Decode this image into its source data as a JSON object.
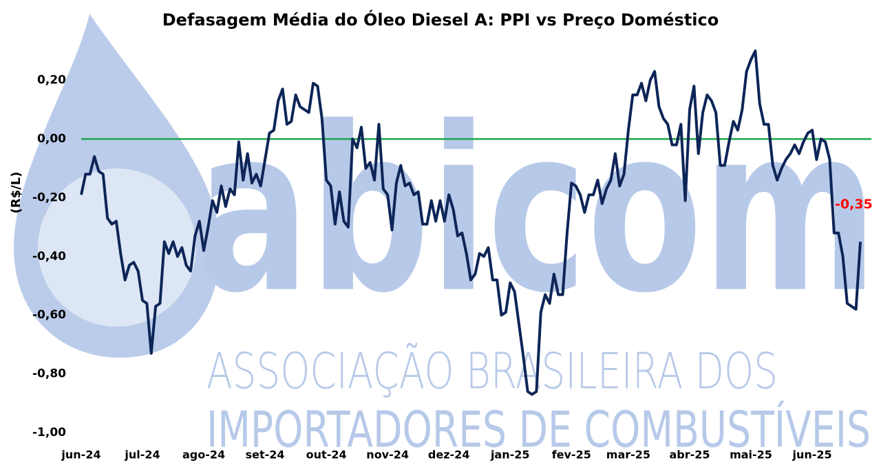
{
  "chart_data": {
    "type": "line",
    "title": "Defasagem Média do Óleo Diesel A: PPI vs Preço Doméstico",
    "y_label": "(R$/L)",
    "color": "#0d2557",
    "ylim": [
      -1.0,
      0.3
    ],
    "yticks": [
      {
        "value": -1.0,
        "label": "-1,00"
      },
      {
        "value": -0.8,
        "label": "-0,80"
      },
      {
        "value": -0.6,
        "label": "-0,60"
      },
      {
        "value": -0.4,
        "label": "-0,40"
      },
      {
        "value": -0.2,
        "label": "-0,20"
      },
      {
        "value": 0,
        "label": "0,00"
      },
      {
        "value": 0.2,
        "label": "0,20"
      }
    ],
    "reference_line": {
      "value": 0,
      "color": "#1aa64a"
    },
    "annotation": {
      "text": "-0,35",
      "value": -0.35,
      "color": "#ff0000"
    },
    "watermark": {
      "logo": "abicom",
      "lines": [
        "ASSOCIAÇÃO BRASILEIRA DOS",
        "IMPORTADORES DE COMBUSTÍVEIS"
      ],
      "color": "#b7c9e9"
    },
    "categories": [
      "jun-24",
      null,
      null,
      null,
      null,
      null,
      null,
      null,
      null,
      null,
      null,
      null,
      null,
      null,
      "jul-24",
      null,
      null,
      null,
      null,
      null,
      null,
      null,
      null,
      null,
      null,
      null,
      null,
      null,
      "ago-24",
      null,
      null,
      null,
      null,
      null,
      null,
      null,
      null,
      null,
      null,
      null,
      null,
      null,
      "set-24",
      null,
      null,
      null,
      null,
      null,
      null,
      null,
      null,
      null,
      null,
      null,
      null,
      null,
      "out-24",
      null,
      null,
      null,
      null,
      null,
      null,
      null,
      null,
      null,
      null,
      null,
      null,
      null,
      "nov-24",
      null,
      null,
      null,
      null,
      null,
      null,
      null,
      null,
      null,
      null,
      null,
      null,
      null,
      "dez-24",
      null,
      null,
      null,
      null,
      null,
      null,
      null,
      null,
      null,
      null,
      null,
      null,
      null,
      "jan-25",
      null,
      null,
      null,
      null,
      null,
      null,
      null,
      null,
      null,
      null,
      null,
      null,
      null,
      "fev-25",
      null,
      null,
      null,
      null,
      null,
      null,
      null,
      null,
      null,
      null,
      null,
      null,
      "mar-25",
      null,
      null,
      null,
      null,
      null,
      null,
      null,
      null,
      null,
      null,
      null,
      null,
      null,
      "abr-25",
      null,
      null,
      null,
      null,
      null,
      null,
      null,
      null,
      null,
      null,
      null,
      null,
      null,
      "mai-25",
      null,
      null,
      null,
      null,
      null,
      null,
      null,
      null,
      null,
      null,
      null,
      null,
      null,
      "jun-25",
      null,
      null,
      null,
      null,
      null,
      null,
      null,
      null,
      null,
      null,
      null
    ],
    "values": [
      -0.19,
      -0.12,
      -0.12,
      -0.06,
      -0.11,
      -0.12,
      -0.27,
      -0.29,
      -0.28,
      -0.39,
      -0.48,
      -0.43,
      -0.42,
      -0.45,
      -0.55,
      -0.56,
      -0.73,
      -0.57,
      -0.56,
      -0.35,
      -0.39,
      -0.35,
      -0.4,
      -0.37,
      -0.43,
      -0.45,
      -0.33,
      -0.28,
      -0.38,
      -0.3,
      -0.21,
      -0.25,
      -0.16,
      -0.23,
      -0.17,
      -0.19,
      -0.01,
      -0.14,
      -0.05,
      -0.15,
      -0.12,
      -0.16,
      -0.07,
      0.02,
      0.03,
      0.13,
      0.17,
      0.05,
      0.06,
      0.15,
      0.11,
      0.1,
      0.09,
      0.19,
      0.18,
      0.07,
      -0.14,
      -0.16,
      -0.29,
      -0.18,
      -0.28,
      -0.3,
      0.0,
      -0.03,
      0.04,
      -0.1,
      -0.08,
      -0.14,
      0.05,
      -0.17,
      -0.19,
      -0.31,
      -0.15,
      -0.09,
      -0.16,
      -0.15,
      -0.19,
      -0.18,
      -0.29,
      -0.29,
      -0.21,
      -0.28,
      -0.21,
      -0.28,
      -0.19,
      -0.24,
      -0.33,
      -0.32,
      -0.39,
      -0.48,
      -0.46,
      -0.39,
      -0.4,
      -0.37,
      -0.48,
      -0.48,
      -0.6,
      -0.59,
      -0.49,
      -0.52,
      -0.63,
      -0.74,
      -0.86,
      -0.87,
      -0.86,
      -0.59,
      -0.53,
      -0.56,
      -0.46,
      -0.53,
      -0.53,
      -0.32,
      -0.15,
      -0.16,
      -0.19,
      -0.25,
      -0.19,
      -0.19,
      -0.14,
      -0.22,
      -0.17,
      -0.14,
      -0.05,
      -0.16,
      -0.12,
      0.03,
      0.15,
      0.15,
      0.19,
      0.13,
      0.2,
      0.23,
      0.11,
      0.07,
      0.05,
      -0.02,
      -0.02,
      0.05,
      -0.21,
      0.1,
      0.18,
      -0.05,
      0.09,
      0.15,
      0.13,
      0.09,
      -0.09,
      -0.09,
      -0.01,
      0.06,
      0.03,
      0.1,
      0.23,
      0.27,
      0.3,
      0.12,
      0.05,
      0.05,
      -0.09,
      -0.14,
      -0.1,
      -0.07,
      -0.05,
      -0.02,
      -0.05,
      -0.01,
      0.02,
      0.03,
      -0.07,
      0.0,
      -0.01,
      -0.07,
      -0.32,
      -0.32,
      -0.4,
      -0.56,
      -0.57,
      -0.58,
      -0.35
    ]
  }
}
